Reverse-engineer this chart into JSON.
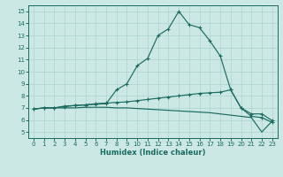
{
  "xlabel": "Humidex (Indice chaleur)",
  "xlim": [
    -0.5,
    23.5
  ],
  "ylim": [
    4.5,
    15.5
  ],
  "xticks": [
    0,
    1,
    2,
    3,
    4,
    5,
    6,
    7,
    8,
    9,
    10,
    11,
    12,
    13,
    14,
    15,
    16,
    17,
    18,
    19,
    20,
    21,
    22,
    23
  ],
  "yticks": [
    5,
    6,
    7,
    8,
    9,
    10,
    11,
    12,
    13,
    14,
    15
  ],
  "bg_color": "#cce8e4",
  "line_color": "#1a6b60",
  "grid_color": "#b0d8d0",
  "line1_x": [
    0,
    1,
    2,
    3,
    4,
    5,
    6,
    7,
    8,
    9,
    10,
    11,
    12,
    13,
    14,
    15,
    16,
    17,
    18,
    19,
    20,
    21,
    22,
    23
  ],
  "line1_y": [
    6.9,
    7.0,
    7.0,
    7.1,
    7.2,
    7.25,
    7.3,
    7.35,
    8.5,
    9.0,
    10.5,
    11.1,
    13.0,
    13.55,
    15.0,
    13.9,
    13.65,
    12.55,
    11.3,
    8.5,
    7.0,
    6.3,
    6.2,
    5.8
  ],
  "line2_x": [
    0,
    1,
    2,
    3,
    4,
    5,
    6,
    7,
    8,
    9,
    10,
    11,
    12,
    13,
    14,
    15,
    16,
    17,
    18,
    19,
    20,
    21,
    22,
    23
  ],
  "line2_y": [
    6.9,
    7.0,
    7.0,
    7.15,
    7.2,
    7.25,
    7.35,
    7.4,
    7.45,
    7.5,
    7.6,
    7.7,
    7.8,
    7.9,
    8.0,
    8.1,
    8.2,
    8.25,
    8.3,
    8.5,
    7.0,
    6.5,
    6.5,
    5.95
  ],
  "line3_x": [
    0,
    1,
    2,
    3,
    4,
    5,
    6,
    7,
    8,
    9,
    10,
    11,
    12,
    13,
    14,
    15,
    16,
    17,
    18,
    19,
    20,
    21,
    22,
    23
  ],
  "line3_y": [
    6.9,
    7.0,
    7.0,
    7.0,
    7.0,
    7.05,
    7.05,
    7.05,
    7.0,
    7.0,
    6.95,
    6.9,
    6.85,
    6.8,
    6.75,
    6.7,
    6.65,
    6.6,
    6.5,
    6.4,
    6.3,
    6.2,
    5.0,
    5.9
  ]
}
